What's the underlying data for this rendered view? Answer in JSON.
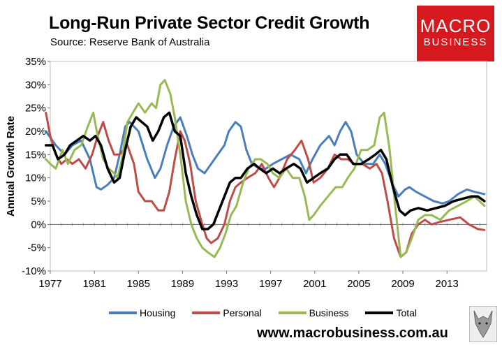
{
  "chart_data": {
    "type": "line",
    "title": "Long-Run Private Sector Credit Growth",
    "subtitle": "Source: Reserve Bank of Australia",
    "xlabel": "",
    "ylabel": "Annual Growth Rate",
    "xlim": [
      1977,
      2016.6
    ],
    "ylim": [
      -10,
      35
    ],
    "yticks": [
      -10,
      -5,
      0,
      5,
      10,
      15,
      20,
      25,
      30,
      35
    ],
    "ytick_labels": [
      "-10%",
      "-5%",
      "0%",
      "5%",
      "10%",
      "15%",
      "20%",
      "25%",
      "30%",
      "35%"
    ],
    "xticks": [
      1977,
      1981,
      1985,
      1989,
      1993,
      1997,
      2001,
      2005,
      2009,
      2013
    ],
    "xtick_labels": [
      "1977",
      "1981",
      "1985",
      "1989",
      "1993",
      "1997",
      "2001",
      "2005",
      "2009",
      "2013"
    ],
    "legend_position": "bottom",
    "series": [
      {
        "name": "Housing",
        "color": "#4a7ebb",
        "points": [
          [
            1976.6,
            20
          ],
          [
            1977.5,
            17
          ],
          [
            1978.3,
            15
          ],
          [
            1979,
            17
          ],
          [
            1979.8,
            18
          ],
          [
            1980.6,
            14
          ],
          [
            1981.2,
            8
          ],
          [
            1981.6,
            7.5
          ],
          [
            1982.2,
            8.5
          ],
          [
            1982.8,
            10
          ],
          [
            1983.3,
            15
          ],
          [
            1983.8,
            21
          ],
          [
            1984.2,
            22
          ],
          [
            1985,
            20
          ],
          [
            1985.8,
            14
          ],
          [
            1986.5,
            10
          ],
          [
            1987,
            12
          ],
          [
            1987.6,
            17
          ],
          [
            1988.2,
            21
          ],
          [
            1988.8,
            23
          ],
          [
            1989.4,
            19
          ],
          [
            1989.9,
            15
          ],
          [
            1990.4,
            12
          ],
          [
            1991,
            11
          ],
          [
            1991.6,
            13
          ],
          [
            1992.2,
            15
          ],
          [
            1992.8,
            17
          ],
          [
            1993.2,
            20
          ],
          [
            1993.8,
            22
          ],
          [
            1994.3,
            21
          ],
          [
            1994.8,
            16
          ],
          [
            1995.3,
            13
          ],
          [
            1996,
            12
          ],
          [
            1996.6,
            12
          ],
          [
            1997.2,
            13
          ],
          [
            1998,
            14
          ],
          [
            1998.8,
            15
          ],
          [
            1999.6,
            14
          ],
          [
            2000.2,
            11
          ],
          [
            2000.8,
            14
          ],
          [
            2001.5,
            17
          ],
          [
            2002.3,
            19
          ],
          [
            2002.8,
            17
          ],
          [
            2003.3,
            20
          ],
          [
            2003.8,
            22
          ],
          [
            2004.3,
            20
          ],
          [
            2004.8,
            15
          ],
          [
            2005.5,
            13
          ],
          [
            2006.3,
            13
          ],
          [
            2006.9,
            15
          ],
          [
            2007.4,
            13
          ],
          [
            2008,
            9
          ],
          [
            2008.6,
            6
          ],
          [
            2009.2,
            7.5
          ],
          [
            2009.6,
            8
          ],
          [
            2010.2,
            7
          ],
          [
            2011,
            6
          ],
          [
            2011.8,
            5
          ],
          [
            2012.6,
            4.5
          ],
          [
            2013.2,
            5
          ],
          [
            2014,
            6.5
          ],
          [
            2014.8,
            7.5
          ],
          [
            2015.5,
            7
          ],
          [
            2016.4,
            6.5
          ]
        ]
      },
      {
        "name": "Personal",
        "color": "#be4b48",
        "points": [
          [
            1976.6,
            24
          ],
          [
            1977,
            19
          ],
          [
            1977.5,
            15
          ],
          [
            1978,
            13
          ],
          [
            1978.5,
            14
          ],
          [
            1979,
            13
          ],
          [
            1979.6,
            14
          ],
          [
            1980.2,
            12
          ],
          [
            1980.8,
            15
          ],
          [
            1981.3,
            19
          ],
          [
            1981.8,
            22
          ],
          [
            1982.3,
            18
          ],
          [
            1982.8,
            15
          ],
          [
            1983.3,
            15
          ],
          [
            1984,
            17
          ],
          [
            1984.6,
            13
          ],
          [
            1985,
            7
          ],
          [
            1985.6,
            5
          ],
          [
            1986.2,
            5
          ],
          [
            1986.8,
            3
          ],
          [
            1987.3,
            3
          ],
          [
            1987.8,
            7
          ],
          [
            1988.3,
            14
          ],
          [
            1988.8,
            20
          ],
          [
            1989.2,
            18
          ],
          [
            1989.7,
            13
          ],
          [
            1990.2,
            5
          ],
          [
            1990.8,
            0
          ],
          [
            1991.2,
            -3
          ],
          [
            1991.6,
            -4
          ],
          [
            1992.2,
            -3
          ],
          [
            1992.8,
            0
          ],
          [
            1993.3,
            5
          ],
          [
            1993.8,
            8
          ],
          [
            1994.3,
            9
          ],
          [
            1994.9,
            10
          ],
          [
            1995.6,
            11
          ],
          [
            1996.2,
            13
          ],
          [
            1996.8,
            10
          ],
          [
            1997.3,
            8
          ],
          [
            1997.8,
            10
          ],
          [
            1998.5,
            14
          ],
          [
            1999.2,
            16
          ],
          [
            1999.8,
            18
          ],
          [
            2000.4,
            14
          ],
          [
            2000.9,
            9
          ],
          [
            2001.5,
            10
          ],
          [
            2002.2,
            12
          ],
          [
            2002.8,
            15
          ],
          [
            2003.4,
            14
          ],
          [
            2004,
            14
          ],
          [
            2004.6,
            13
          ],
          [
            2005.3,
            13
          ],
          [
            2006,
            12
          ],
          [
            2006.6,
            13
          ],
          [
            2007.1,
            11
          ],
          [
            2007.6,
            5
          ],
          [
            2008.2,
            -3
          ],
          [
            2008.8,
            -7
          ],
          [
            2009.3,
            -6
          ],
          [
            2009.8,
            -2
          ],
          [
            2010.4,
            0
          ],
          [
            2011,
            1
          ],
          [
            2011.6,
            0
          ],
          [
            2012.3,
            0.5
          ],
          [
            2013.2,
            1
          ],
          [
            2014.2,
            1.5
          ],
          [
            2015,
            0
          ],
          [
            2015.8,
            -1
          ],
          [
            2016.4,
            -1.2
          ]
        ]
      },
      {
        "name": "Business",
        "color": "#98b954",
        "points": [
          [
            1976.6,
            14
          ],
          [
            1977,
            13
          ],
          [
            1977.5,
            12
          ],
          [
            1978.1,
            16
          ],
          [
            1978.6,
            13
          ],
          [
            1979.2,
            16
          ],
          [
            1979.8,
            17
          ],
          [
            1980.4,
            21
          ],
          [
            1980.9,
            24
          ],
          [
            1981.3,
            19
          ],
          [
            1981.8,
            14
          ],
          [
            1982.3,
            12
          ],
          [
            1982.8,
            11
          ],
          [
            1983.1,
            10
          ],
          [
            1983.5,
            14
          ],
          [
            1984,
            22
          ],
          [
            1984.5,
            24
          ],
          [
            1985,
            26
          ],
          [
            1985.6,
            24
          ],
          [
            1986.2,
            26
          ],
          [
            1986.6,
            25
          ],
          [
            1987,
            30
          ],
          [
            1987.4,
            31
          ],
          [
            1987.9,
            28
          ],
          [
            1988.3,
            23
          ],
          [
            1988.8,
            15
          ],
          [
            1989.3,
            5
          ],
          [
            1989.8,
            0
          ],
          [
            1990.3,
            -3
          ],
          [
            1990.8,
            -5
          ],
          [
            1991.3,
            -6
          ],
          [
            1991.9,
            -7
          ],
          [
            1992.4,
            -5
          ],
          [
            1992.9,
            -2
          ],
          [
            1993.4,
            2
          ],
          [
            1993.9,
            4
          ],
          [
            1994.5,
            9
          ],
          [
            1995,
            12
          ],
          [
            1995.6,
            14
          ],
          [
            1996.1,
            14
          ],
          [
            1996.7,
            13
          ],
          [
            1997.2,
            11
          ],
          [
            1997.8,
            10
          ],
          [
            1998.4,
            12
          ],
          [
            1999,
            10
          ],
          [
            1999.6,
            10
          ],
          [
            2000.1,
            6
          ],
          [
            2000.5,
            1
          ],
          [
            2000.9,
            2
          ],
          [
            2001.5,
            4
          ],
          [
            2002.2,
            6
          ],
          [
            2002.9,
            8
          ],
          [
            2003.5,
            8
          ],
          [
            2004,
            10
          ],
          [
            2004.6,
            12
          ],
          [
            2005.2,
            16
          ],
          [
            2005.8,
            16
          ],
          [
            2006.4,
            17
          ],
          [
            2006.9,
            23
          ],
          [
            2007.3,
            24
          ],
          [
            2007.8,
            16
          ],
          [
            2008.3,
            4
          ],
          [
            2008.8,
            -7
          ],
          [
            2009.3,
            -6
          ],
          [
            2009.8,
            -3
          ],
          [
            2010.4,
            1
          ],
          [
            2011,
            2
          ],
          [
            2011.6,
            2
          ],
          [
            2012.4,
            1
          ],
          [
            2013.2,
            3
          ],
          [
            2014,
            4
          ],
          [
            2014.8,
            5
          ],
          [
            2015.5,
            6
          ],
          [
            2016.4,
            4
          ]
        ]
      },
      {
        "name": "Total",
        "color": "#000000",
        "points": [
          [
            1976.6,
            17
          ],
          [
            1977.2,
            17
          ],
          [
            1977.7,
            14
          ],
          [
            1978.3,
            15
          ],
          [
            1978.8,
            17
          ],
          [
            1979.4,
            18
          ],
          [
            1980,
            19
          ],
          [
            1980.6,
            18
          ],
          [
            1981.1,
            19
          ],
          [
            1981.6,
            17
          ],
          [
            1982.2,
            12
          ],
          [
            1982.8,
            9
          ],
          [
            1983.3,
            10
          ],
          [
            1983.8,
            16
          ],
          [
            1984.3,
            21
          ],
          [
            1984.8,
            23
          ],
          [
            1985.3,
            22
          ],
          [
            1985.8,
            21
          ],
          [
            1986.3,
            18
          ],
          [
            1986.8,
            20
          ],
          [
            1987.3,
            23
          ],
          [
            1987.8,
            24
          ],
          [
            1988.3,
            20
          ],
          [
            1988.8,
            19
          ],
          [
            1989.3,
            11
          ],
          [
            1989.8,
            6
          ],
          [
            1990.3,
            2
          ],
          [
            1990.8,
            -1
          ],
          [
            1991.3,
            -1
          ],
          [
            1991.8,
            0
          ],
          [
            1992.3,
            3
          ],
          [
            1992.8,
            6
          ],
          [
            1993.3,
            9
          ],
          [
            1993.8,
            10
          ],
          [
            1994.3,
            10
          ],
          [
            1994.9,
            12
          ],
          [
            1995.5,
            13
          ],
          [
            1996,
            12
          ],
          [
            1996.6,
            11
          ],
          [
            1997.2,
            12
          ],
          [
            1997.8,
            11
          ],
          [
            1998.4,
            12
          ],
          [
            1999.1,
            13
          ],
          [
            1999.7,
            12
          ],
          [
            2000.3,
            9
          ],
          [
            2000.9,
            10
          ],
          [
            2001.5,
            11
          ],
          [
            2002.2,
            12
          ],
          [
            2002.8,
            14
          ],
          [
            2003.3,
            15
          ],
          [
            2003.9,
            15
          ],
          [
            2004.5,
            13
          ],
          [
            2005.2,
            13
          ],
          [
            2005.9,
            14
          ],
          [
            2006.5,
            15
          ],
          [
            2007,
            16
          ],
          [
            2007.5,
            14
          ],
          [
            2008.1,
            8
          ],
          [
            2008.7,
            3
          ],
          [
            2009.2,
            2
          ],
          [
            2009.7,
            3
          ],
          [
            2010.4,
            3.5
          ],
          [
            2011.2,
            3
          ],
          [
            2012,
            3.5
          ],
          [
            2012.8,
            4
          ],
          [
            2013.6,
            5
          ],
          [
            2014.4,
            5.5
          ],
          [
            2015.2,
            6
          ],
          [
            2015.8,
            6
          ],
          [
            2016.4,
            5
          ]
        ]
      }
    ]
  },
  "logo": {
    "line1": "MACRO",
    "line2": "BUSINESS"
  },
  "footer": {
    "url": "www.macrobusiness.com.au"
  }
}
